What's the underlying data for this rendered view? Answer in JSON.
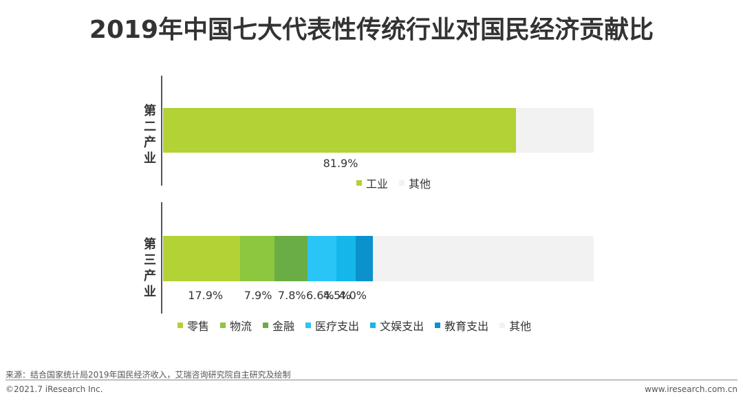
{
  "title": "2019年中国七大代表性传统行业对国民经济贡献比",
  "colors": {
    "industry": "#B2D235",
    "retail": "#B2D235",
    "logistics": "#8DC63F",
    "finance": "#6AAD45",
    "medical": "#29C5F6",
    "culture": "#14B7EA",
    "education": "#0B92CD",
    "other": "#F2F2F2"
  },
  "chart_data": {
    "type": "bar",
    "orientation": "horizontal",
    "stacked": true,
    "title": "2019年中国七大代表性传统行业对国民经济贡献比",
    "xlim": [
      0,
      100
    ],
    "groups": [
      {
        "category": "第二产业",
        "series": [
          {
            "name": "工业",
            "value": 81.9,
            "label": "81.9%",
            "color_key": "industry"
          },
          {
            "name": "其他",
            "value": 18.1,
            "label": "",
            "color_key": "other"
          }
        ]
      },
      {
        "category": "第三产业",
        "series": [
          {
            "name": "零售",
            "value": 17.9,
            "label": "17.9%",
            "color_key": "retail"
          },
          {
            "name": "物流",
            "value": 7.9,
            "label": "7.9%",
            "color_key": "logistics"
          },
          {
            "name": "金融",
            "value": 7.8,
            "label": "7.8%",
            "color_key": "finance"
          },
          {
            "name": "医疗支出",
            "value": 6.6,
            "label": "6.6%",
            "color_key": "medical"
          },
          {
            "name": "文娱支出",
            "value": 4.5,
            "label": "4.5%",
            "color_key": "culture"
          },
          {
            "name": "教育支出",
            "value": 4.0,
            "label": "4.0%",
            "color_key": "education"
          },
          {
            "name": "其他",
            "value": 51.3,
            "label": "",
            "color_key": "other"
          }
        ]
      }
    ]
  },
  "source": "来源：结合国家统计局2019年国民经济收入，艾瑞咨询研究院自主研究及绘制",
  "copyright": "©2021.7 iResearch Inc.",
  "website": "www.iresearch.com.cn"
}
